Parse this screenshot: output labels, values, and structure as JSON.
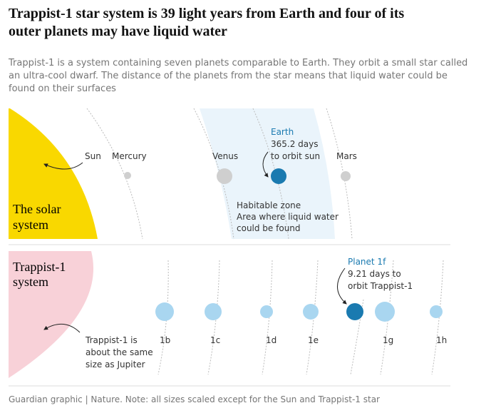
{
  "header": {
    "title": [
      "Trappist-1 star system is 39 light years from Earth and four of its",
      "outer planets may have liquid water"
    ],
    "subtitle": [
      "Trappist-1 is a system containing seven planets comparable to Earth. They orbit a small star called",
      "an ultra-cool dwarf. The distance of the planets from the star means that liquid water could be",
      "found on their surfaces"
    ]
  },
  "solar": {
    "label": [
      "The solar",
      "system"
    ],
    "sun": "Sun",
    "planets": [
      "Mercury",
      "Venus",
      "Mars"
    ],
    "earth": {
      "name": "Earth",
      "note": [
        "365.2 days",
        "to orbit sun"
      ]
    },
    "habitable_zone": {
      "title": "Habitable zone",
      "note": [
        "Area where liquid water",
        "could be found"
      ]
    }
  },
  "trappist": {
    "label": [
      "Trappist-1",
      "system"
    ],
    "star_note": [
      "Trappist-1 is",
      "about the same",
      "size as Jupiter"
    ],
    "planets": [
      "1b",
      "1c",
      "1d",
      "1e",
      "1g",
      "1h"
    ],
    "highlight": {
      "name": "Planet 1f",
      "note": [
        "9.21 days to",
        "orbit Trappist-1"
      ]
    }
  },
  "footer": "Guardian graphic | Nature. Note: all sizes scaled except for the Sun and Trappist-1 star"
}
